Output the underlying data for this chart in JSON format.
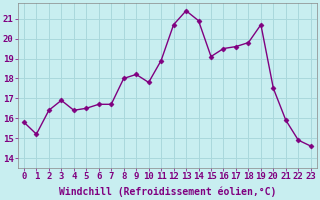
{
  "x": [
    0,
    1,
    2,
    3,
    4,
    5,
    6,
    7,
    8,
    9,
    10,
    11,
    12,
    13,
    14,
    15,
    16,
    17,
    18,
    19,
    20,
    21,
    22,
    23
  ],
  "y": [
    15.8,
    15.2,
    16.4,
    16.9,
    16.4,
    16.5,
    16.7,
    16.7,
    18.0,
    18.2,
    17.8,
    18.9,
    20.7,
    21.4,
    20.9,
    19.1,
    19.5,
    19.6,
    19.8,
    20.7,
    17.5,
    15.9,
    14.9,
    14.6
  ],
  "line_color": "#800080",
  "marker": "D",
  "marker_size": 2.5,
  "bg_color": "#c8eef0",
  "grid_color": "#aad8dc",
  "xlabel": "Windchill (Refroidissement éolien,°C)",
  "xlabel_fontsize": 7,
  "xtick_labels": [
    "0",
    "1",
    "2",
    "3",
    "4",
    "5",
    "6",
    "7",
    "8",
    "9",
    "10",
    "11",
    "12",
    "13",
    "14",
    "15",
    "16",
    "17",
    "18",
    "19",
    "20",
    "21",
    "22",
    "23"
  ],
  "ytick_values": [
    14,
    15,
    16,
    17,
    18,
    19,
    20,
    21
  ],
  "ylim": [
    13.5,
    21.8
  ],
  "xlim": [
    -0.5,
    23.5
  ],
  "tick_fontsize": 6.5,
  "tick_color": "#800080",
  "line_width": 1.0,
  "fig_width": 3.2,
  "fig_height": 2.0,
  "dpi": 100
}
